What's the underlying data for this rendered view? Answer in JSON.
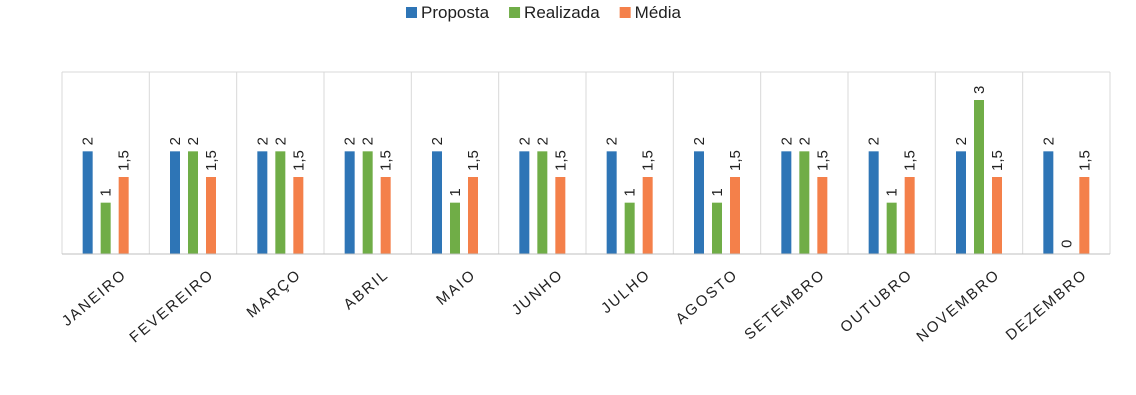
{
  "chart_data": {
    "type": "bar",
    "categories": [
      "JANEIRO",
      "FEVEREIRO",
      "MARÇO",
      "ABRIL",
      "MAIO",
      "JUNHO",
      "JULHO",
      "AGOSTO",
      "SETEMBRO",
      "OUTUBRO",
      "NOVEMBRO",
      "DEZEMBRO"
    ],
    "series": [
      {
        "name": "Proposta",
        "color": "#2e75b6",
        "values": [
          2,
          2,
          2,
          2,
          2,
          2,
          2,
          2,
          2,
          2,
          2,
          2
        ]
      },
      {
        "name": "Realizada",
        "color": "#70ad47",
        "values": [
          1,
          2,
          2,
          2,
          1,
          2,
          1,
          1,
          2,
          1,
          3,
          0
        ]
      },
      {
        "name": "Média",
        "color": "#f4804a",
        "values": [
          1.5,
          1.5,
          1.5,
          1.5,
          1.5,
          1.5,
          1.5,
          1.5,
          1.5,
          1.5,
          1.5,
          1.5
        ]
      }
    ],
    "value_labels": [
      [
        "2",
        "2",
        "2",
        "2",
        "2",
        "2",
        "2",
        "2",
        "2",
        "2",
        "2",
        "2"
      ],
      [
        "1",
        "2",
        "2",
        "2",
        "1",
        "2",
        "1",
        "1",
        "2",
        "1",
        "3",
        "0"
      ],
      [
        "1,5",
        "1,5",
        "1,5",
        "1,5",
        "1,5",
        "1,5",
        "1,5",
        "1,5",
        "1,5",
        "1,5",
        "1,5",
        "1,5"
      ]
    ],
    "ylim": [
      0,
      3
    ],
    "gridlines": true,
    "legend_position": "top-center",
    "colors": {
      "grid": "#d9d9d9",
      "axis": "#bfbfbf",
      "label": "#222222"
    }
  }
}
